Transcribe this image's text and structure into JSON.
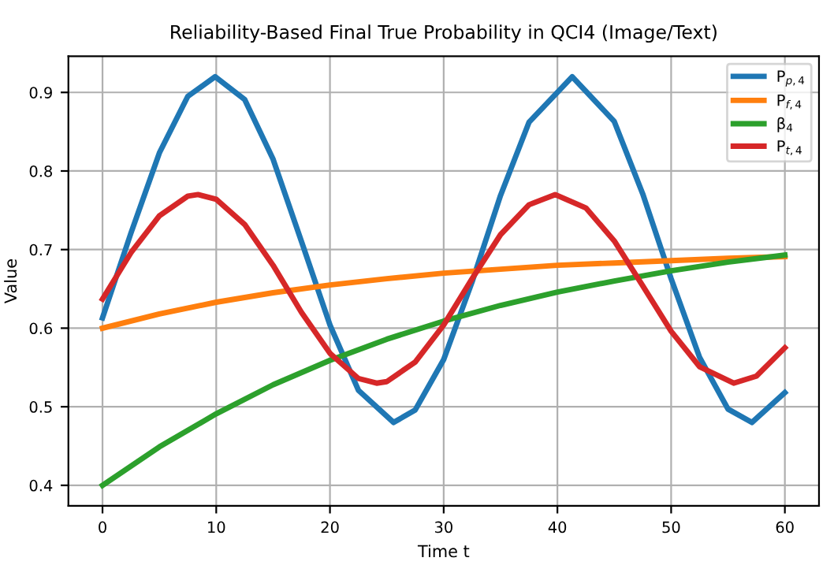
{
  "chart_data": {
    "type": "line",
    "title": "Reliability-Based Final True Probability in QCI4 (Image/Text)",
    "xlabel": "Time t",
    "ylabel": "Value",
    "xlim": [
      -3,
      63
    ],
    "ylim": [
      0.374,
      0.946
    ],
    "xticks": [
      0,
      10,
      20,
      30,
      40,
      50,
      60
    ],
    "yticks": [
      0.4,
      0.5,
      0.6,
      0.7,
      0.8,
      0.9
    ],
    "grid": true,
    "legend": "top right",
    "series": [
      {
        "name": "P$_{p,4}$",
        "color": "#1f77b4",
        "x": [
          0,
          2.5,
          5,
          7.5,
          9.9,
          12.5,
          15,
          17.5,
          20,
          22.5,
          25.6,
          27.5,
          30,
          32.5,
          35,
          37.5,
          41.3,
          45,
          47.5,
          50,
          52.5,
          55,
          57.1,
          60
        ],
        "values": [
          0.613,
          0.721,
          0.823,
          0.895,
          0.92,
          0.891,
          0.815,
          0.71,
          0.604,
          0.521,
          0.48,
          0.496,
          0.56,
          0.659,
          0.769,
          0.862,
          0.92,
          0.863,
          0.771,
          0.663,
          0.563,
          0.497,
          0.48,
          0.518
        ]
      },
      {
        "name": "P$_{f,4}$",
        "color": "#ff7f0e",
        "x": [
          0,
          5,
          10,
          15,
          20,
          25,
          30,
          35,
          40,
          45,
          50,
          55,
          60
        ],
        "values": [
          0.6,
          0.618,
          0.633,
          0.645,
          0.655,
          0.663,
          0.67,
          0.675,
          0.68,
          0.683,
          0.686,
          0.689,
          0.691
        ]
      },
      {
        "name": "β$_{4}$",
        "color": "#2ca02c",
        "x": [
          0,
          5,
          10,
          15,
          20,
          25,
          30,
          35,
          40,
          45,
          50,
          55,
          60
        ],
        "values": [
          0.4,
          0.449,
          0.491,
          0.528,
          0.559,
          0.586,
          0.609,
          0.629,
          0.646,
          0.66,
          0.673,
          0.684,
          0.693
        ]
      },
      {
        "name": "P$_{t,4}$",
        "color": "#d62728",
        "x": [
          0,
          2.5,
          5,
          7.5,
          8.4,
          10,
          12.5,
          15,
          17.5,
          20,
          22.5,
          24.1,
          25,
          27.5,
          30,
          32.5,
          35,
          37.5,
          39.8,
          42.5,
          45,
          47.5,
          50,
          52.5,
          55.5,
          57.5,
          60
        ],
        "values": [
          0.637,
          0.696,
          0.743,
          0.768,
          0.77,
          0.764,
          0.732,
          0.68,
          0.62,
          0.568,
          0.536,
          0.53,
          0.532,
          0.557,
          0.604,
          0.663,
          0.719,
          0.757,
          0.77,
          0.753,
          0.711,
          0.654,
          0.596,
          0.551,
          0.53,
          0.539,
          0.575
        ]
      }
    ]
  }
}
